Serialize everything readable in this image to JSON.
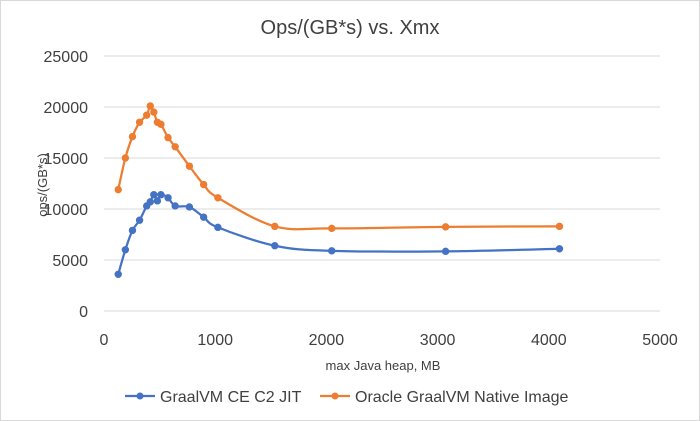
{
  "chart_data": {
    "type": "scatter",
    "title": "Ops/(GB*s) vs. Xmx",
    "xlabel": "max Java heap, MB",
    "ylabel": "ops/(GB*s)",
    "xlim": [
      0,
      5000
    ],
    "ylim": [
      0,
      25000
    ],
    "xticks": [
      0,
      1000,
      2000,
      3000,
      4000,
      5000
    ],
    "yticks": [
      0,
      5000,
      10000,
      15000,
      20000,
      25000
    ],
    "xtick_labels": [
      "0",
      "1000",
      "2000",
      "3000",
      "4000",
      "5000"
    ],
    "ytick_labels": [
      "0",
      "5000",
      "10000",
      "15000",
      "20000",
      "25000"
    ],
    "grid": true,
    "legend_position": "bottom",
    "smooth_lines": true,
    "series": [
      {
        "name": "GraalVM CE C2 JIT",
        "color": "#4472c4",
        "x": [
          128,
          192,
          256,
          320,
          384,
          416,
          448,
          480,
          512,
          576,
          640,
          768,
          896,
          1024,
          1536,
          2048,
          3072,
          4096
        ],
        "y": [
          3600,
          6000,
          7900,
          8900,
          10300,
          10700,
          11400,
          10800,
          11400,
          11100,
          10300,
          10200,
          9200,
          8200,
          6400,
          5900,
          5850,
          6100
        ]
      },
      {
        "name": "Oracle GraalVM Native Image",
        "color": "#ed7d31",
        "x": [
          128,
          192,
          256,
          320,
          384,
          416,
          448,
          480,
          512,
          576,
          640,
          768,
          896,
          1024,
          1536,
          2048,
          3072,
          4096
        ],
        "y": [
          11900,
          15000,
          17100,
          18500,
          19200,
          20100,
          19500,
          18500,
          18300,
          17000,
          16100,
          14200,
          12400,
          11100,
          8300,
          8100,
          8250,
          8300
        ]
      }
    ]
  }
}
